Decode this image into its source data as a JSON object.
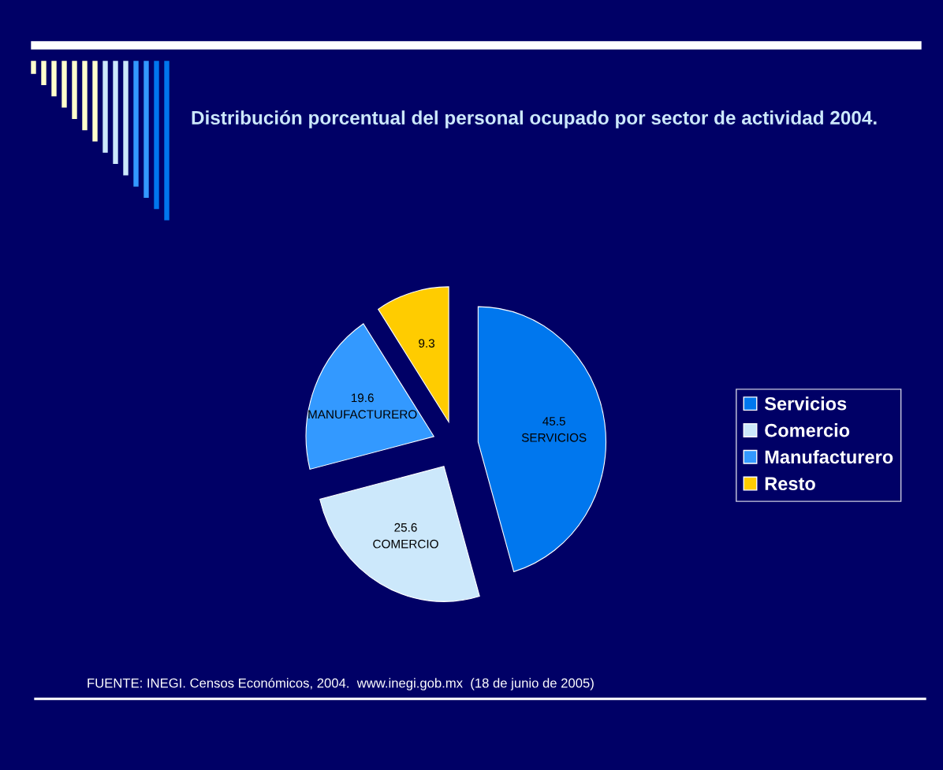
{
  "chart_data": {
    "type": "pie",
    "title": "Distribución porcentual del personal ocupado por sector de actividad 2004.",
    "categories": [
      "Servicios",
      "Comercio",
      "Manufacturero",
      "Resto"
    ],
    "values": [
      45.5,
      25.6,
      19.6,
      9.3
    ],
    "colors": [
      "#0077ee",
      "#cce8fb",
      "#3399ff",
      "#ffcc00"
    ],
    "value_labels": [
      "45.5\nSERVICIOS",
      "25.6\nCOMERCIO",
      "19.6\nMANUFACTURERO",
      "9.3"
    ],
    "legend": "right",
    "annotations": [
      "FUENTE: INEGI. Censos Económicos, 2004.  www.inegi.gob.mx  (18 de junio de 2005)"
    ]
  }
}
